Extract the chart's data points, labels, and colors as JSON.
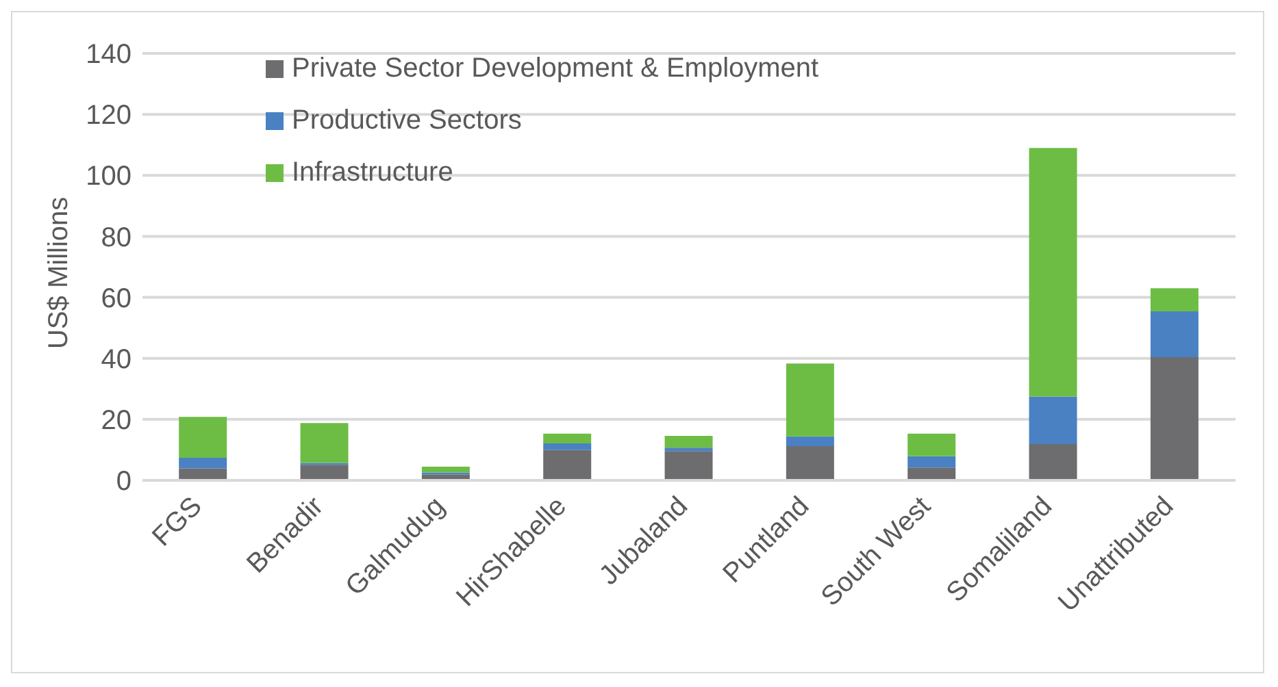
{
  "chart_data": {
    "type": "bar",
    "stacked": true,
    "ylabel": "US$ Millions",
    "categories": [
      "FGS",
      "Benadir",
      "Galmudug",
      "HirShabelle",
      "Jubaland",
      "Puntland",
      "South West",
      "Somaliland",
      "Unattributed"
    ],
    "series": [
      {
        "name": "Private Sector Development & Employment",
        "color": "#6d6d6f",
        "values": [
          3.9,
          5.1,
          1.9,
          9.9,
          9.6,
          11.2,
          4.2,
          11.9,
          40.4
        ]
      },
      {
        "name": "Productive Sectors",
        "color": "#4a81c2",
        "values": [
          3.5,
          0.6,
          0.7,
          2.2,
          1.1,
          3.2,
          3.7,
          15.6,
          15
        ]
      },
      {
        "name": "Infrastructure",
        "color": "#6dbd45",
        "values": [
          13.4,
          13.1,
          1.9,
          3.2,
          3.9,
          23.9,
          7.4,
          81.5,
          7.6
        ]
      }
    ],
    "ylim": [
      0,
      140
    ],
    "yticks": [
      0,
      20,
      40,
      60,
      80,
      100,
      120,
      140
    ],
    "grid": "y",
    "legend": "top left"
  }
}
